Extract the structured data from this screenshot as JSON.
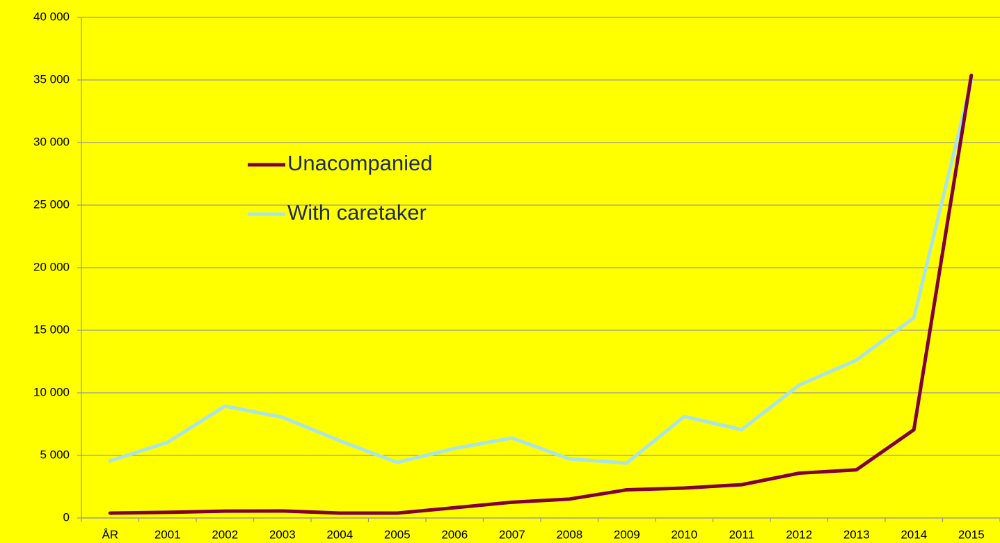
{
  "chart_data": {
    "type": "line",
    "categories": [
      "ÅR",
      "2001",
      "2002",
      "2003",
      "2004",
      "2005",
      "2006",
      "2007",
      "2008",
      "2009",
      "2010",
      "2011",
      "2012",
      "2013",
      "2014",
      "2015"
    ],
    "series": [
      {
        "name": "Unacompanied",
        "color": "#800038",
        "values": [
          390,
          450,
          550,
          560,
          390,
          390,
          820,
          1260,
          1510,
          2250,
          2390,
          2660,
          3580,
          3850,
          7050,
          35370
        ]
      },
      {
        "name": "With caretaker",
        "color": "#a8e4e8",
        "values": [
          4560,
          6050,
          8940,
          8050,
          6170,
          4440,
          5560,
          6390,
          4720,
          4390,
          8110,
          7060,
          10610,
          12610,
          16000,
          34940
        ]
      }
    ],
    "ylim": [
      0,
      40000
    ],
    "yticks": [
      {
        "value": 0,
        "label": "0"
      },
      {
        "value": 5000,
        "label": "5 000"
      },
      {
        "value": 10000,
        "label": "10 000"
      },
      {
        "value": 15000,
        "label": "15 000"
      },
      {
        "value": 20000,
        "label": "20 000"
      },
      {
        "value": 25000,
        "label": "25 000"
      },
      {
        "value": 30000,
        "label": "30 000"
      },
      {
        "value": 35000,
        "label": "35 000"
      },
      {
        "value": 40000,
        "label": "40 000"
      }
    ],
    "grid": true
  }
}
